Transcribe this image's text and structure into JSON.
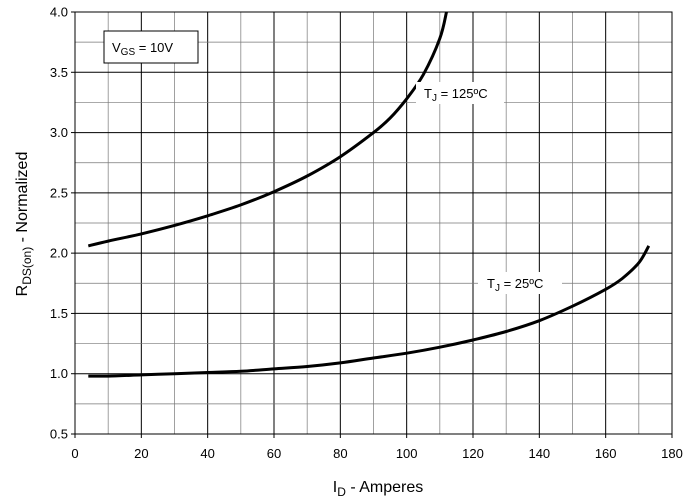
{
  "chart_data": {
    "type": "line",
    "xlabel": {
      "main": "I",
      "sub": "D",
      "rest": " - Amperes"
    },
    "ylabel": {
      "main": "R",
      "sub": "DS(on)",
      "rest": " - Normalized"
    },
    "xlim": [
      0,
      180
    ],
    "ylim": [
      0.5,
      4.0
    ],
    "xticks": [
      0,
      20,
      40,
      60,
      80,
      100,
      120,
      140,
      160,
      180
    ],
    "yticks": [
      0.5,
      1.0,
      1.5,
      2.0,
      2.5,
      3.0,
      3.5,
      4.0
    ],
    "x_minor_step": 10,
    "y_minor_step": 0.25,
    "grid": true,
    "annotations": [
      {
        "id": "vgs",
        "main": "V",
        "sub": "GS",
        "rest": " = 10V",
        "boxed": true
      },
      {
        "id": "tj125",
        "main": "T",
        "sub": "J",
        "rest": " = 125ºC",
        "boxed": false,
        "anchor": {
          "x": 111,
          "y": 3.4
        }
      },
      {
        "id": "tj25",
        "main": "T",
        "sub": "J",
        "rest": " = 25ºC",
        "boxed": false,
        "anchor": {
          "x": 130,
          "y": 1.72
        }
      }
    ],
    "series": [
      {
        "id": "tj125",
        "values": [
          [
            4,
            2.06
          ],
          [
            10,
            2.1
          ],
          [
            20,
            2.16
          ],
          [
            30,
            2.23
          ],
          [
            40,
            2.31
          ],
          [
            50,
            2.4
          ],
          [
            60,
            2.51
          ],
          [
            70,
            2.64
          ],
          [
            80,
            2.8
          ],
          [
            90,
            3.0
          ],
          [
            95,
            3.12
          ],
          [
            100,
            3.28
          ],
          [
            105,
            3.48
          ],
          [
            110,
            3.78
          ],
          [
            112,
            4.0
          ]
        ]
      },
      {
        "id": "tj25",
        "values": [
          [
            4,
            0.98
          ],
          [
            10,
            0.98
          ],
          [
            20,
            0.99
          ],
          [
            30,
            1.0
          ],
          [
            40,
            1.01
          ],
          [
            50,
            1.02
          ],
          [
            60,
            1.04
          ],
          [
            70,
            1.06
          ],
          [
            80,
            1.09
          ],
          [
            90,
            1.13
          ],
          [
            100,
            1.17
          ],
          [
            110,
            1.22
          ],
          [
            120,
            1.28
          ],
          [
            130,
            1.35
          ],
          [
            140,
            1.44
          ],
          [
            150,
            1.56
          ],
          [
            160,
            1.7
          ],
          [
            165,
            1.79
          ],
          [
            170,
            1.92
          ],
          [
            173,
            2.06
          ]
        ]
      }
    ]
  }
}
